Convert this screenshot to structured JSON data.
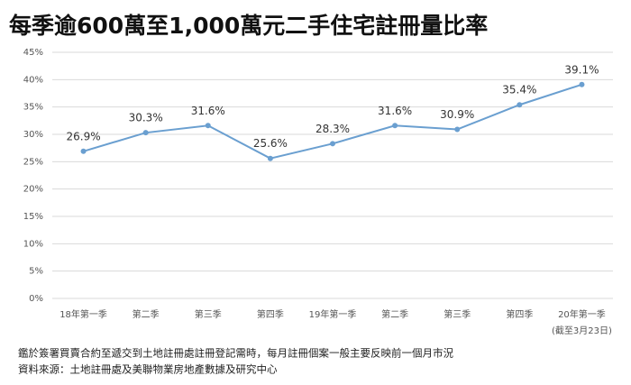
{
  "chart_data": {
    "type": "line",
    "title": "每季逾600萬至1,000萬元二手住宅註冊量比率",
    "categories": [
      "18年第一季",
      "第二季",
      "第三季",
      "第四季",
      "19年第一季",
      "第二季",
      "第三季",
      "第四季",
      "20年第一季"
    ],
    "category_note": "(截至3月23日)",
    "series": [
      {
        "name": "註冊量比率",
        "color": "#6a9fd0",
        "values": [
          26.9,
          30.3,
          31.6,
          25.6,
          28.3,
          31.6,
          30.9,
          35.4,
          39.1
        ],
        "value_labels": [
          "26.9%",
          "30.3%",
          "31.6%",
          "25.6%",
          "28.3%",
          "31.6%",
          "30.9%",
          "35.4%",
          "39.1%"
        ]
      }
    ],
    "ylim": [
      0,
      45
    ],
    "yticks": [
      {
        "value": 0,
        "label": "0%"
      },
      {
        "value": 5,
        "label": "5%"
      },
      {
        "value": 10,
        "label": "10%"
      },
      {
        "value": 15,
        "label": "15%"
      },
      {
        "value": 20,
        "label": "20%"
      },
      {
        "value": 25,
        "label": "25%"
      },
      {
        "value": 30,
        "label": "30%"
      },
      {
        "value": 35,
        "label": "35%"
      },
      {
        "value": 40,
        "label": "40%"
      },
      {
        "value": 45,
        "label": "45%"
      }
    ],
    "grid": true,
    "notes": [
      "鑑於簽署買賣合約至遞交到土地註冊處註冊登記需時，每月註冊個案一般主要反映前一個月市況",
      "資料來源：土地註冊處及美聯物業房地產數據及研究中心"
    ]
  }
}
